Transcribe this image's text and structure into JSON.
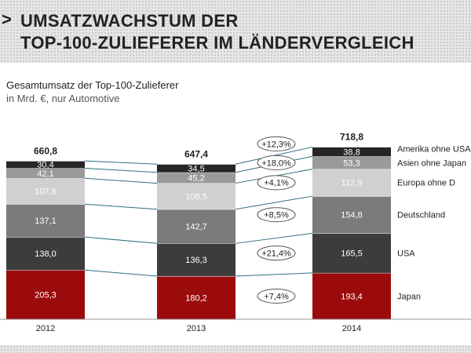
{
  "header": {
    "arrow": ">",
    "title_line1": "UMSATZWACHSTUM DER",
    "title_line2": "TOP-100-ZULIEFERER IM LÄNDERVERGLEICH"
  },
  "chart_data": {
    "type": "bar",
    "stacked": true,
    "title": "Gesamtumsatz der Top-100-Zulieferer",
    "subtitle": "in Mrd. €, nur Automotive",
    "categories": [
      "2012",
      "2013",
      "2014"
    ],
    "totals": [
      "660,8",
      "647,4",
      "718,8"
    ],
    "series": [
      {
        "name": "Japan",
        "values": [
          205.3,
          180.2,
          193.4
        ],
        "labels": [
          "205,3",
          "180,2",
          "193,4"
        ],
        "color": "#9c0b0b",
        "text_color": "#ffffff",
        "growth": "+7,4%"
      },
      {
        "name": "USA",
        "values": [
          138.0,
          136.3,
          165.5
        ],
        "labels": [
          "138,0",
          "136,3",
          "165,5"
        ],
        "color": "#3c3c3c",
        "text_color": "#ffffff",
        "growth": "+21,4%"
      },
      {
        "name": "Deutschland",
        "values": [
          137.1,
          142.7,
          154.8
        ],
        "labels": [
          "137,1",
          "142,7",
          "154,8"
        ],
        "color": "#7b7b7b",
        "text_color": "#ffffff",
        "growth": "+8,5%"
      },
      {
        "name": "Europa ohne D",
        "values": [
          107.8,
          108.5,
          112.9
        ],
        "labels": [
          "107,8",
          "108,5",
          "112,9"
        ],
        "color": "#d0d0d0",
        "text_color": "#ffffff",
        "growth": "+4,1%"
      },
      {
        "name": "Asien ohne Japan",
        "values": [
          42.1,
          45.2,
          53.3
        ],
        "labels": [
          "42,1",
          "45,2",
          "53,3"
        ],
        "color": "#9a9a9a",
        "text_color": "#ffffff",
        "growth": "+18,0%"
      },
      {
        "name": "Amerika ohne USA",
        "values": [
          30.4,
          34.5,
          38.8
        ],
        "labels": [
          "30,4",
          "34,5",
          "38,8"
        ],
        "color": "#262626",
        "text_color": "#ffffff",
        "growth": "+12,3%"
      }
    ]
  }
}
